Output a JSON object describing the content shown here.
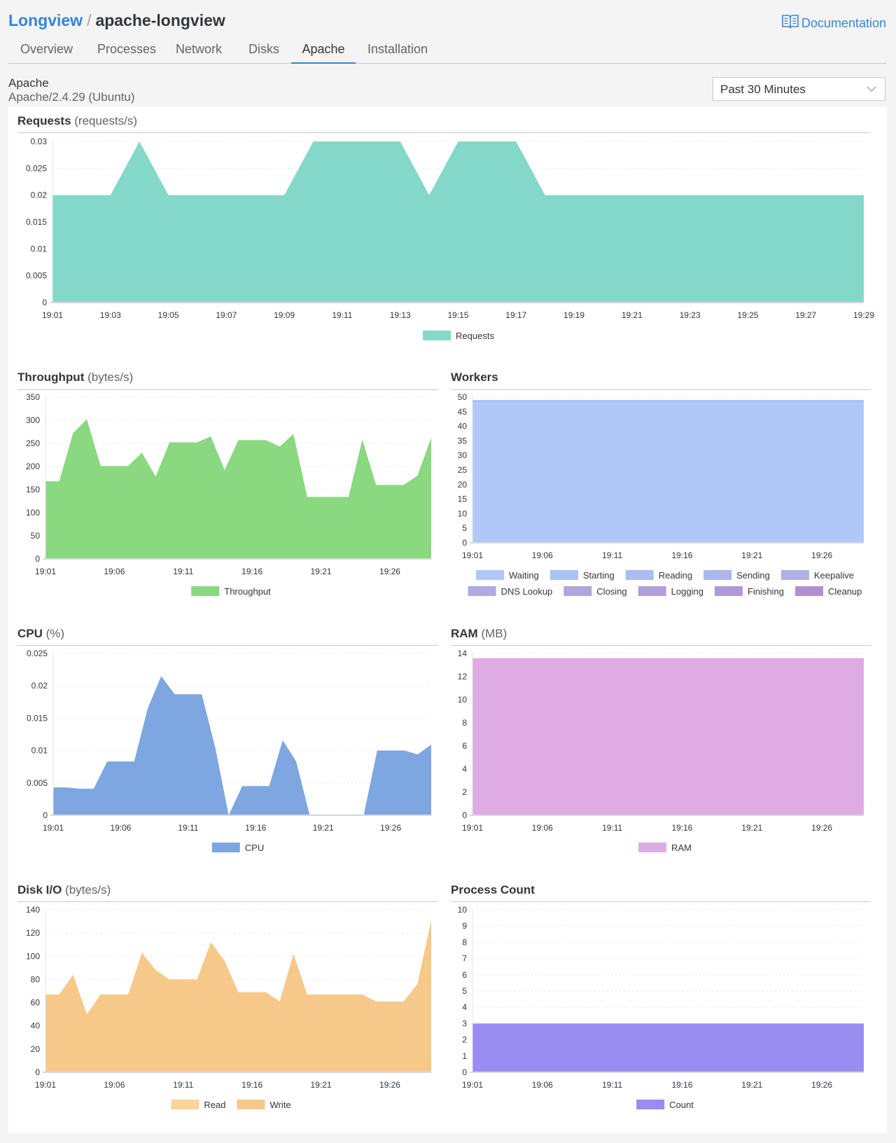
{
  "breadcrumb": {
    "root": "Longview",
    "separator": "/",
    "current": "apache-longview"
  },
  "documentation_link": {
    "label": "Documentation",
    "icon": "book-icon",
    "color": "#3683dc"
  },
  "tabs": [
    {
      "label": "Overview",
      "active": false
    },
    {
      "label": "Processes",
      "active": false
    },
    {
      "label": "Network",
      "active": false
    },
    {
      "label": "Disks",
      "active": false
    },
    {
      "label": "Apache",
      "active": true
    },
    {
      "label": "Installation",
      "active": false
    }
  ],
  "service": {
    "name": "Apache",
    "version": "Apache/2.4.29 (Ubuntu)"
  },
  "time_range": {
    "selected": "Past 30 Minutes",
    "icon": "chevron-down-icon"
  },
  "charts": {
    "requests": {
      "title": "Requests",
      "unit": "(requests/s)"
    },
    "throughput": {
      "title": "Throughput",
      "unit": "(bytes/s)"
    },
    "workers": {
      "title": "Workers",
      "unit": ""
    },
    "cpu": {
      "title": "CPU",
      "unit": "(%)"
    },
    "ram": {
      "title": "RAM",
      "unit": "(MB)"
    },
    "disk": {
      "title": "Disk I/O",
      "unit": "(bytes/s)"
    },
    "process": {
      "title": "Process Count",
      "unit": ""
    }
  },
  "chart_data": [
    {
      "id": "requests",
      "type": "area",
      "title": "Requests (requests/s)",
      "x_start": "19:01",
      "x_interval_minutes": 1,
      "xticks": [
        "19:01",
        "19:03",
        "19:05",
        "19:07",
        "19:09",
        "19:11",
        "19:13",
        "19:15",
        "19:17",
        "19:19",
        "19:21",
        "19:23",
        "19:25",
        "19:27",
        "19:29"
      ],
      "yticks": [
        "0",
        "0.005",
        "0.01",
        "0.015",
        "0.02",
        "0.025",
        "0.03"
      ],
      "ylim": [
        0,
        0.03
      ],
      "grid": true,
      "legend": "bottom",
      "series": [
        {
          "name": "Requests",
          "color": "#84d8c9",
          "values": [
            0.02,
            0.02,
            0.02,
            0.03,
            0.02,
            0.02,
            0.02,
            0.02,
            0.02,
            0.03,
            0.03,
            0.03,
            0.03,
            0.02,
            0.03,
            0.03,
            0.03,
            0.02,
            0.02,
            0.02,
            0.02,
            0.02,
            0.02,
            0.02,
            0.02,
            0.02,
            0.02,
            0.02,
            0.02
          ]
        }
      ]
    },
    {
      "id": "throughput",
      "type": "area",
      "title": "Throughput (bytes/s)",
      "x_start": "19:01",
      "x_interval_minutes": 1,
      "xticks": [
        "19:01",
        "19:06",
        "19:11",
        "19:16",
        "19:21",
        "19:26"
      ],
      "yticks": [
        "0",
        "50",
        "100",
        "150",
        "200",
        "250",
        "300",
        "350"
      ],
      "ylim": [
        0,
        350
      ],
      "grid": true,
      "legend": "bottom",
      "series": [
        {
          "name": "Throughput",
          "color": "#8ad880",
          "values": [
            168,
            168,
            272,
            302,
            201,
            201,
            201,
            230,
            178,
            252,
            252,
            252,
            265,
            192,
            257,
            257,
            257,
            243,
            270,
            134,
            134,
            134,
            134,
            258,
            160,
            160,
            160,
            180,
            262
          ]
        }
      ]
    },
    {
      "id": "workers",
      "type": "area",
      "stacked": true,
      "title": "Workers",
      "x_start": "19:01",
      "x_interval_minutes": 1,
      "xticks": [
        "19:01",
        "19:06",
        "19:11",
        "19:16",
        "19:21",
        "19:26"
      ],
      "yticks": [
        "0",
        "5",
        "10",
        "15",
        "20",
        "25",
        "30",
        "35",
        "40",
        "45",
        "50"
      ],
      "ylim": [
        0,
        50
      ],
      "grid": true,
      "legend": "bottom",
      "series": [
        {
          "name": "Waiting",
          "color": "#afc8f8",
          "constant": 48
        },
        {
          "name": "Starting",
          "color": "#a9c2f4",
          "constant": 1
        },
        {
          "name": "Reading",
          "color": "#acbcf0",
          "constant": 0
        },
        {
          "name": "Sending",
          "color": "#aab6ec",
          "constant": 0
        },
        {
          "name": "Keepalive",
          "color": "#aeb0e6",
          "constant": 0
        },
        {
          "name": "DNS Lookup",
          "color": "#b0aae2",
          "constant": 0
        },
        {
          "name": "Closing",
          "color": "#b0a6de",
          "constant": 0
        },
        {
          "name": "Logging",
          "color": "#b09fda",
          "constant": 0
        },
        {
          "name": "Finishing",
          "color": "#b198d6",
          "constant": 0
        },
        {
          "name": "Cleanup",
          "color": "#b190d2",
          "constant": 0
        }
      ]
    },
    {
      "id": "cpu",
      "type": "area",
      "title": "CPU (%)",
      "x_start": "19:01",
      "x_interval_minutes": 1,
      "xticks": [
        "19:01",
        "19:06",
        "19:11",
        "19:16",
        "19:21",
        "19:26"
      ],
      "yticks": [
        "0",
        "0.005",
        "0.01",
        "0.015",
        "0.02",
        "0.025"
      ],
      "ylim": [
        0,
        0.025
      ],
      "grid": true,
      "legend": "bottom",
      "series": [
        {
          "name": "CPU",
          "color": "#7ea6e0",
          "values": [
            0.0043,
            0.0043,
            0.0041,
            0.0041,
            0.0083,
            0.0083,
            0.0083,
            0.0165,
            0.0215,
            0.0187,
            0.0187,
            0.0187,
            0.0105,
            0,
            0.0045,
            0.0045,
            0.0045,
            0.0116,
            0.0083,
            0,
            0,
            0,
            0,
            0,
            0.01,
            0.01,
            0.01,
            0.0094,
            0.0109
          ]
        }
      ]
    },
    {
      "id": "ram",
      "type": "area",
      "title": "RAM (MB)",
      "x_start": "19:01",
      "x_interval_minutes": 1,
      "xticks": [
        "19:01",
        "19:06",
        "19:11",
        "19:16",
        "19:21",
        "19:26"
      ],
      "yticks": [
        "0",
        "2",
        "4",
        "6",
        "8",
        "10",
        "12",
        "14"
      ],
      "ylim": [
        0,
        14
      ],
      "grid": true,
      "legend": "bottom",
      "series": [
        {
          "name": "RAM",
          "color": "#dfabe4",
          "constant": 13.6
        }
      ]
    },
    {
      "id": "disk",
      "type": "area",
      "stacked": true,
      "title": "Disk I/O (bytes/s)",
      "x_start": "19:01",
      "x_interval_minutes": 1,
      "xticks": [
        "19:01",
        "19:06",
        "19:11",
        "19:16",
        "19:21",
        "19:26"
      ],
      "yticks": [
        "0",
        "20",
        "40",
        "60",
        "80",
        "100",
        "120",
        "140"
      ],
      "ylim": [
        0,
        140
      ],
      "grid": true,
      "legend": "bottom",
      "series": [
        {
          "name": "Read",
          "color": "#f9d49b",
          "constant": 0
        },
        {
          "name": "Write",
          "color": "#f6c98b",
          "values": [
            67,
            67,
            84,
            50,
            67,
            67,
            67,
            103,
            88,
            80,
            80,
            80,
            112,
            96,
            69,
            69,
            69,
            61,
            102,
            67,
            67,
            67,
            67,
            67,
            61,
            61,
            61,
            76,
            131
          ]
        }
      ]
    },
    {
      "id": "process",
      "type": "area",
      "title": "Process Count",
      "x_start": "19:01",
      "x_interval_minutes": 1,
      "xticks": [
        "19:01",
        "19:06",
        "19:11",
        "19:16",
        "19:21",
        "19:26"
      ],
      "yticks": [
        "0",
        "1",
        "2",
        "3",
        "4",
        "5",
        "6",
        "7",
        "8",
        "9",
        "10"
      ],
      "ylim": [
        0,
        10
      ],
      "grid": true,
      "legend": "bottom",
      "series": [
        {
          "name": "Count",
          "color": "#9a8cf0",
          "constant": 3
        }
      ]
    }
  ]
}
